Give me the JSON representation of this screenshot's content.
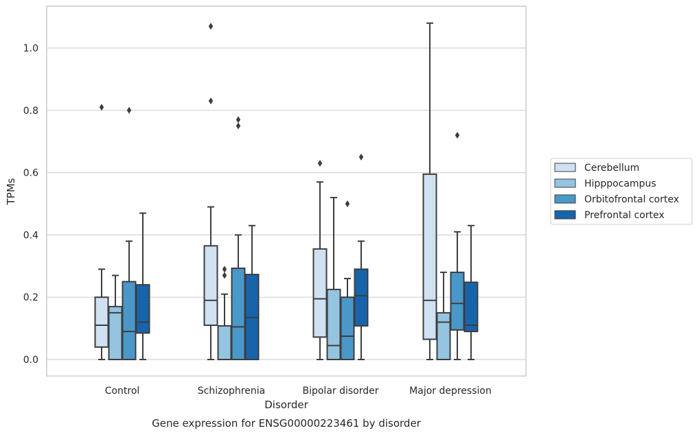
{
  "chart_data": {
    "type": "box",
    "title": "",
    "caption": "Gene expression for ENSG00000223461 by disorder",
    "xlabel": "Disorder",
    "ylabel": "TPMs",
    "ylim": [
      -0.05,
      1.135
    ],
    "yticks": [
      0.0,
      0.2,
      0.4,
      0.6,
      0.8,
      1.0
    ],
    "ytick_labels": [
      "0.0",
      "0.2",
      "0.4",
      "0.6",
      "0.8",
      "1.0"
    ],
    "grid": "horizontal",
    "legend_position": "right",
    "categories": [
      "Control",
      "Schizophrenia",
      "Bipolar disorder",
      "Major depression"
    ],
    "series": [
      {
        "name": "Cerebellum",
        "color": "#d0e1f2",
        "boxes": [
          {
            "whislo": 0.0,
            "q1": 0.04,
            "med": 0.11,
            "q3": 0.2,
            "whishi": 0.29,
            "fliers": [
              0.81
            ]
          },
          {
            "whislo": 0.0,
            "q1": 0.11,
            "med": 0.19,
            "q3": 0.365,
            "whishi": 0.49,
            "fliers": [
              0.83,
              1.07
            ]
          },
          {
            "whislo": 0.0,
            "q1": 0.072,
            "med": 0.195,
            "q3": 0.355,
            "whishi": 0.57,
            "fliers": [
              0.63
            ]
          },
          {
            "whislo": 0.0,
            "q1": 0.065,
            "med": 0.19,
            "q3": 0.595,
            "whishi": 1.08,
            "fliers": []
          }
        ]
      },
      {
        "name": "Hipppocampus",
        "color": "#94c4df",
        "boxes": [
          {
            "whislo": 0.0,
            "q1": 0.0,
            "med": 0.15,
            "q3": 0.17,
            "whishi": 0.27,
            "fliers": []
          },
          {
            "whislo": 0.0,
            "q1": 0.0,
            "med": 0.0,
            "q3": 0.108,
            "whishi": 0.21,
            "fliers": [
              0.27,
              0.29
            ]
          },
          {
            "whislo": 0.0,
            "q1": 0.0,
            "med": 0.045,
            "q3": 0.225,
            "whishi": 0.52,
            "fliers": []
          },
          {
            "whislo": 0.0,
            "q1": 0.0,
            "med": 0.12,
            "q3": 0.15,
            "whishi": 0.28,
            "fliers": []
          }
        ]
      },
      {
        "name": "Orbitofrontal cortex",
        "color": "#4a98c9",
        "boxes": [
          {
            "whislo": 0.0,
            "q1": 0.0,
            "med": 0.09,
            "q3": 0.25,
            "whishi": 0.38,
            "fliers": [
              0.8
            ]
          },
          {
            "whislo": 0.0,
            "q1": 0.0,
            "med": 0.105,
            "q3": 0.293,
            "whishi": 0.4,
            "fliers": [
              0.75,
              0.77
            ]
          },
          {
            "whislo": 0.0,
            "q1": 0.0,
            "med": 0.075,
            "q3": 0.2,
            "whishi": 0.26,
            "fliers": [
              0.5
            ]
          },
          {
            "whislo": 0.0,
            "q1": 0.095,
            "med": 0.18,
            "q3": 0.28,
            "whishi": 0.41,
            "fliers": [
              0.72
            ]
          }
        ]
      },
      {
        "name": "Prefrontal cortex",
        "color": "#1764ab",
        "boxes": [
          {
            "whislo": 0.0,
            "q1": 0.085,
            "med": 0.12,
            "q3": 0.24,
            "whishi": 0.47,
            "fliers": []
          },
          {
            "whislo": 0.0,
            "q1": 0.0,
            "med": 0.135,
            "q3": 0.273,
            "whishi": 0.43,
            "fliers": []
          },
          {
            "whislo": 0.0,
            "q1": 0.108,
            "med": 0.205,
            "q3": 0.29,
            "whishi": 0.38,
            "fliers": [
              0.65
            ]
          },
          {
            "whislo": 0.0,
            "q1": 0.09,
            "med": 0.11,
            "q3": 0.248,
            "whishi": 0.43,
            "fliers": []
          }
        ]
      }
    ]
  }
}
